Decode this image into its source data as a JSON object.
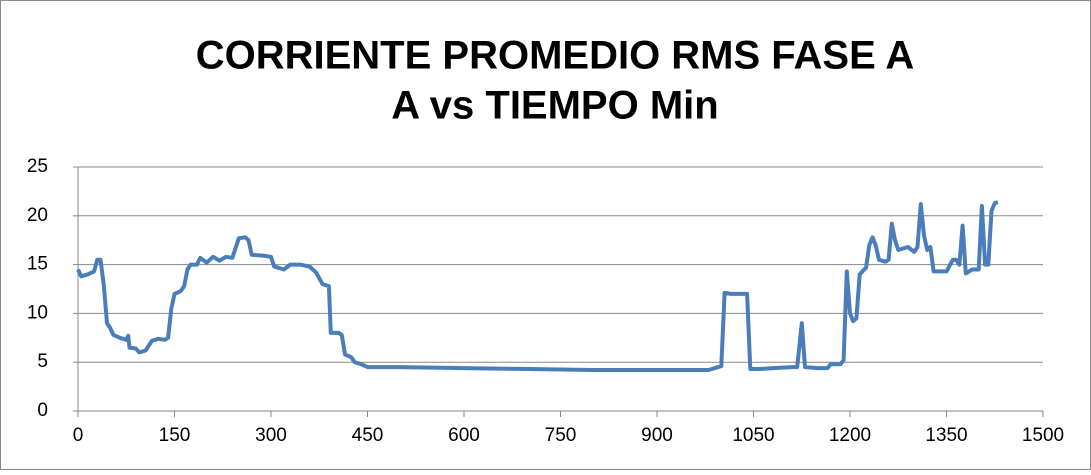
{
  "chart_data": {
    "type": "line",
    "title": [
      "CORRIENTE PROMEDIO RMS FASE A",
      "A vs TIEMPO Min"
    ],
    "x": [
      0,
      5,
      15,
      25,
      30,
      35,
      40,
      45,
      50,
      55,
      65,
      75,
      78,
      80,
      90,
      95,
      105,
      115,
      125,
      135,
      140,
      145,
      150,
      160,
      165,
      170,
      175,
      185,
      190,
      200,
      210,
      220,
      230,
      240,
      250,
      260,
      265,
      270,
      290,
      300,
      305,
      320,
      330,
      345,
      360,
      370,
      380,
      390,
      393,
      405,
      410,
      415,
      425,
      430,
      440,
      450,
      500,
      600,
      700,
      800,
      900,
      980,
      1000,
      1005,
      1015,
      1040,
      1045,
      1060,
      1080,
      1110,
      1118,
      1125,
      1130,
      1150,
      1165,
      1170,
      1185,
      1190,
      1195,
      1200,
      1205,
      1210,
      1215,
      1225,
      1230,
      1235,
      1240,
      1245,
      1255,
      1260,
      1265,
      1270,
      1275,
      1290,
      1300,
      1305,
      1310,
      1315,
      1320,
      1325,
      1330,
      1350,
      1360,
      1365,
      1370,
      1375,
      1380,
      1390,
      1400,
      1405,
      1410,
      1415,
      1420,
      1425,
      1430
    ],
    "values": [
      14.5,
      13.8,
      14.0,
      14.3,
      15.5,
      15.5,
      13,
      9,
      8.5,
      7.8,
      7.5,
      7.3,
      7.7,
      6.5,
      6.4,
      6.0,
      6.2,
      7.2,
      7.4,
      7.3,
      7.5,
      10.5,
      12.0,
      12.3,
      12.8,
      14.5,
      15.0,
      15.0,
      15.7,
      15.2,
      15.8,
      15.4,
      15.8,
      15.7,
      17.7,
      17.8,
      17.5,
      16.0,
      15.9,
      15.8,
      14.8,
      14.5,
      15.0,
      15.0,
      14.8,
      14.2,
      13.0,
      12.8,
      8.0,
      8.0,
      7.8,
      5.8,
      5.5,
      5.0,
      4.8,
      4.5,
      4.5,
      4.4,
      4.3,
      4.2,
      4.2,
      4.2,
      4.6,
      12.1,
      12.0,
      12.0,
      4.3,
      4.3,
      4.4,
      4.5,
      4.5,
      9.0,
      4.5,
      4.4,
      4.4,
      4.8,
      4.8,
      5.2,
      14.3,
      10.0,
      9.2,
      9.5,
      14.0,
      14.7,
      17.0,
      17.8,
      17.0,
      15.5,
      15.3,
      15.5,
      19.2,
      17.5,
      16.5,
      16.8,
      16.3,
      16.8,
      21.2,
      18.0,
      16.5,
      16.8,
      14.3,
      14.3,
      15.5,
      15.5,
      15.0,
      19.0,
      14.1,
      14.5,
      14.5,
      21.0,
      15.0,
      15.0,
      20.5,
      21.3,
      21.4
    ],
    "color": "#4a7ebb",
    "xlim": [
      0,
      1500
    ],
    "xticks": [
      0,
      150,
      300,
      450,
      600,
      750,
      900,
      1050,
      1200,
      1350,
      1500
    ],
    "ylim": [
      0,
      25
    ],
    "yticks": [
      0,
      5,
      10,
      15,
      20,
      25
    ],
    "grid": true
  }
}
